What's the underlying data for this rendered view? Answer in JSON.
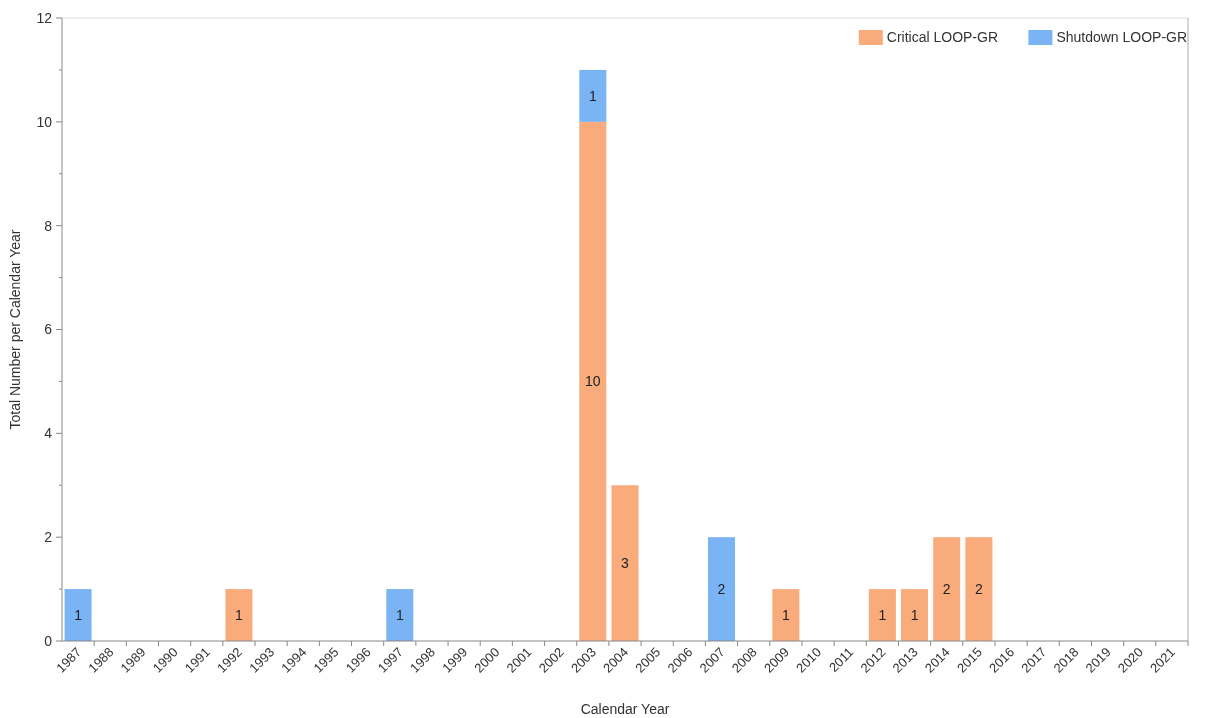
{
  "chart_data": {
    "type": "bar",
    "xlabel": "Calendar Year",
    "ylabel": "Total Number per Calendar Year",
    "categories": [
      "1987",
      "1988",
      "1989",
      "1990",
      "1991",
      "1992",
      "1993",
      "1994",
      "1995",
      "1996",
      "1997",
      "1998",
      "1999",
      "2000",
      "2001",
      "2002",
      "2003",
      "2004",
      "2005",
      "2006",
      "2007",
      "2008",
      "2009",
      "2010",
      "2011",
      "2012",
      "2013",
      "2014",
      "2015",
      "2016",
      "2017",
      "2018",
      "2019",
      "2020",
      "2021"
    ],
    "series": [
      {
        "name": "Critical LOOP-GR",
        "color": "#f9ab7c",
        "values": [
          null,
          null,
          null,
          null,
          null,
          1,
          null,
          null,
          null,
          null,
          null,
          null,
          null,
          null,
          null,
          null,
          10,
          3,
          null,
          null,
          null,
          null,
          1,
          null,
          null,
          1,
          1,
          2,
          2,
          null,
          null,
          null,
          null,
          null,
          null
        ]
      },
      {
        "name": "Shutdown LOOP-GR",
        "color": "#7ab4f5",
        "values": [
          1,
          null,
          null,
          null,
          null,
          null,
          null,
          null,
          null,
          null,
          1,
          null,
          null,
          null,
          null,
          null,
          1,
          null,
          null,
          null,
          2,
          null,
          null,
          null,
          null,
          null,
          null,
          null,
          null,
          null,
          null,
          null,
          null,
          null,
          null
        ]
      }
    ],
    "stacked": true,
    "data_labels": true,
    "legend": "top right",
    "grid": false,
    "ylim": [
      0,
      12
    ],
    "yticks": [
      0,
      {
        "value": 1,
        "label": null
      },
      2,
      {
        "value": 3,
        "label": null
      },
      4,
      {
        "value": 5,
        "label": null
      },
      6,
      {
        "value": 7,
        "label": null
      },
      8,
      {
        "value": 9,
        "label": null
      },
      10,
      {
        "value": 11,
        "label": null
      },
      12
    ]
  }
}
